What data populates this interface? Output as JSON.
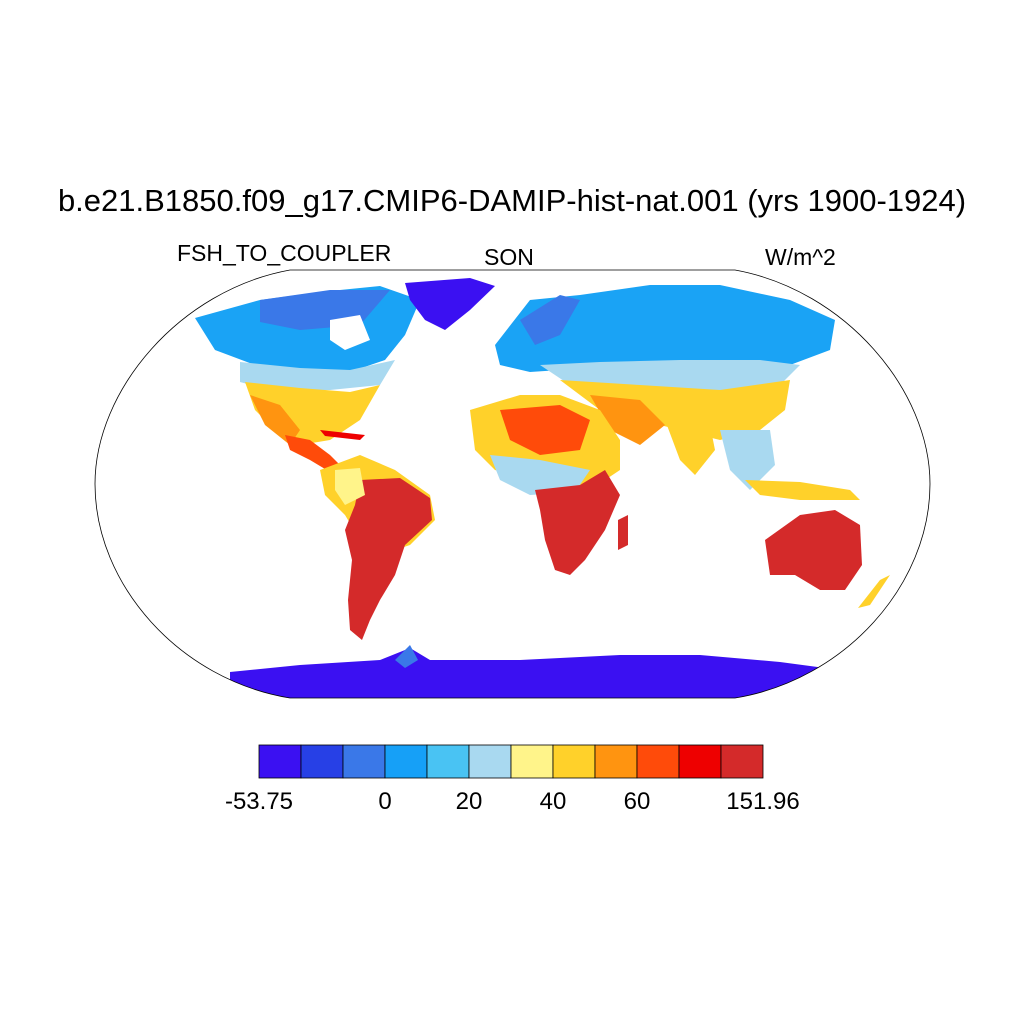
{
  "map": {
    "title": "b.e21.B1850.f09_g17.CMIP6-DAMIP-hist-nat.001 (yrs 1900-1924)",
    "variable": "FSH_TO_COUPLER",
    "season": "SON",
    "units": "W/m^2",
    "projection": "robinson-like",
    "colorbar": {
      "colors": [
        "#3b10f2",
        "#2740e6",
        "#3a78e8",
        "#16a0f7",
        "#49c3f3",
        "#a9d9f0",
        "#fff48a",
        "#ffd12a",
        "#ff9410",
        "#ff4b0a",
        "#ee0000",
        "#d42a2a"
      ],
      "labels": [
        {
          "text": "-53.75",
          "bin": 0
        },
        {
          "text": "0",
          "bin": 3
        },
        {
          "text": "20",
          "bin": 5
        },
        {
          "text": "40",
          "bin": 7
        },
        {
          "text": "60",
          "bin": 9
        },
        {
          "text": "151.96",
          "bin": 12
        }
      ]
    }
  }
}
